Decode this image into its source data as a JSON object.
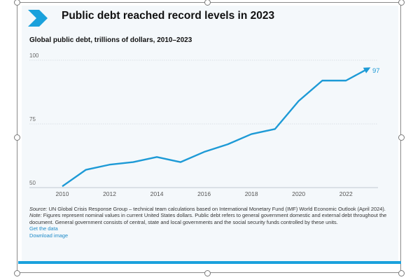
{
  "title": "Public debt reached record levels in 2023",
  "subtitle": "Global public debt, trillions of dollars, 2010–2023",
  "notes": {
    "source_label": "Source:",
    "source_text": " UN Global Crisis Response Group – technical team calculations based on International Monetary Fund (IMF) World Economic Outlook (April 2024).",
    "note_label": "Note:",
    "note_text": " Figures represent nominal values in current United States dollars. Public debt refers to general government domestic and external debt throughout the document. General government consists of central, state and local governments and the social security funds controlled by these units.",
    "get_data": "Get the data",
    "download": "Download image"
  },
  "colors": {
    "accent": "#1aa1dc",
    "line": "#1d9ad6",
    "grid": "#bfc9d1"
  },
  "chart_data": {
    "type": "line",
    "title": "Global public debt, trillions of dollars, 2010–2023",
    "xlabel": "",
    "ylabel": "",
    "x": [
      2010,
      2011,
      2012,
      2013,
      2014,
      2015,
      2016,
      2017,
      2018,
      2019,
      2020,
      2021,
      2022,
      2023
    ],
    "values": [
      50.5,
      57,
      59,
      60,
      62,
      60,
      64,
      67,
      71,
      73,
      84,
      92,
      92,
      97
    ],
    "end_label": "97",
    "x_ticks": [
      "2010",
      "2012",
      "2014",
      "2016",
      "2018",
      "2020",
      "2022"
    ],
    "y_ticks": [
      "50",
      "75",
      "100"
    ],
    "ylim": [
      50,
      100
    ],
    "xlim": [
      2010,
      2023
    ],
    "grid": true,
    "legend": "none"
  }
}
